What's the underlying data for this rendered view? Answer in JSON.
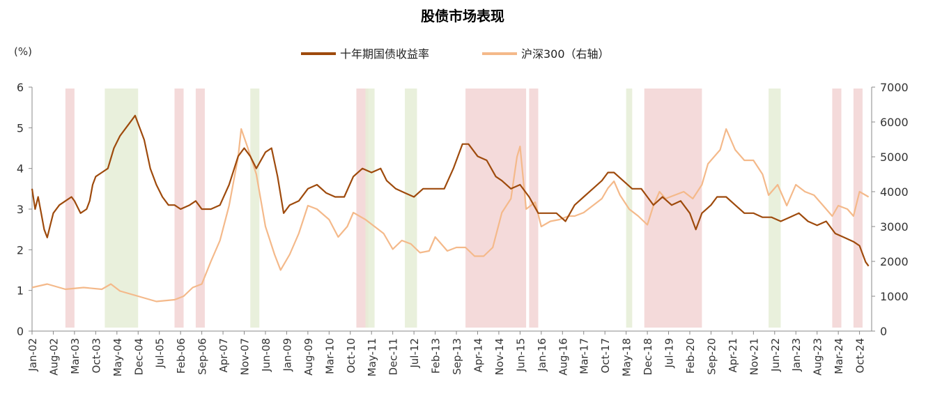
{
  "chart_data": {
    "type": "line",
    "title": "股债市场表现",
    "left_unit": "(%)",
    "y_left": {
      "ticks": [
        0,
        1,
        2,
        3,
        4,
        5,
        6
      ],
      "range": [
        0,
        6
      ]
    },
    "y_right": {
      "ticks": [
        0,
        1000,
        2000,
        3000,
        4000,
        5000,
        6000,
        7000
      ],
      "range": [
        0,
        7000
      ]
    },
    "x_range": [
      "2002-01",
      "2025-02"
    ],
    "x_ticks": [
      {
        "label": "Jan-02",
        "date": "2002-01"
      },
      {
        "label": "Aug-02",
        "date": "2002-08"
      },
      {
        "label": "Mar-03",
        "date": "2003-03"
      },
      {
        "label": "Oct-03",
        "date": "2003-10"
      },
      {
        "label": "May-04",
        "date": "2004-05"
      },
      {
        "label": "Dec-04",
        "date": "2004-12"
      },
      {
        "label": "Jul-05",
        "date": "2005-07"
      },
      {
        "label": "Feb-06",
        "date": "2006-02"
      },
      {
        "label": "Sep-06",
        "date": "2006-09"
      },
      {
        "label": "Apr-07",
        "date": "2007-04"
      },
      {
        "label": "Nov-07",
        "date": "2007-11"
      },
      {
        "label": "Jun-08",
        "date": "2008-06"
      },
      {
        "label": "Jan-09",
        "date": "2009-01"
      },
      {
        "label": "Aug-09",
        "date": "2009-08"
      },
      {
        "label": "Mar-10",
        "date": "2010-03"
      },
      {
        "label": "Oct-10",
        "date": "2010-10"
      },
      {
        "label": "May-11",
        "date": "2011-05"
      },
      {
        "label": "Dec-11",
        "date": "2011-12"
      },
      {
        "label": "Jul-12",
        "date": "2012-07"
      },
      {
        "label": "Feb-13",
        "date": "2013-02"
      },
      {
        "label": "Sep-13",
        "date": "2013-09"
      },
      {
        "label": "Apr-14",
        "date": "2014-04"
      },
      {
        "label": "Nov-14",
        "date": "2014-11"
      },
      {
        "label": "Jun-15",
        "date": "2015-06"
      },
      {
        "label": "Jan-16",
        "date": "2016-01"
      },
      {
        "label": "Aug-16",
        "date": "2016-08"
      },
      {
        "label": "Mar-17",
        "date": "2017-03"
      },
      {
        "label": "Oct-17",
        "date": "2017-10"
      },
      {
        "label": "May-18",
        "date": "2018-05"
      },
      {
        "label": "Dec-18",
        "date": "2018-12"
      },
      {
        "label": "Jul-19",
        "date": "2019-07"
      },
      {
        "label": "Feb-20",
        "date": "2020-02"
      },
      {
        "label": "Sep-20",
        "date": "2020-09"
      },
      {
        "label": "Apr-21",
        "date": "2021-04"
      },
      {
        "label": "Nov-21",
        "date": "2021-11"
      },
      {
        "label": "Jun-22",
        "date": "2022-06"
      },
      {
        "label": "Jan-23",
        "date": "2023-01"
      },
      {
        "label": "Aug-23",
        "date": "2023-08"
      },
      {
        "label": "Mar-24",
        "date": "2024-03"
      },
      {
        "label": "Oct-24",
        "date": "2024-10"
      }
    ],
    "legend_placement": "top-center",
    "grid": false,
    "series": [
      {
        "name": "十年期国债收益率",
        "axis": "left",
        "color": "#9e4a0c",
        "points": [
          [
            "2002-01",
            3.5
          ],
          [
            "2002-02",
            3.0
          ],
          [
            "2002-03",
            3.3
          ],
          [
            "2002-04",
            2.9
          ],
          [
            "2002-05",
            2.5
          ],
          [
            "2002-06",
            2.3
          ],
          [
            "2002-07",
            2.6
          ],
          [
            "2002-08",
            2.9
          ],
          [
            "2002-10",
            3.1
          ],
          [
            "2002-12",
            3.2
          ],
          [
            "2003-02",
            3.3
          ],
          [
            "2003-03",
            3.2
          ],
          [
            "2003-05",
            2.9
          ],
          [
            "2003-07",
            3.0
          ],
          [
            "2003-08",
            3.2
          ],
          [
            "2003-09",
            3.6
          ],
          [
            "2003-10",
            3.8
          ],
          [
            "2003-12",
            3.9
          ],
          [
            "2004-02",
            4.0
          ],
          [
            "2004-04",
            4.5
          ],
          [
            "2004-06",
            4.8
          ],
          [
            "2004-08",
            5.0
          ],
          [
            "2004-10",
            5.2
          ],
          [
            "2004-11",
            5.3
          ],
          [
            "2004-12",
            5.1
          ],
          [
            "2005-02",
            4.7
          ],
          [
            "2005-04",
            4.0
          ],
          [
            "2005-06",
            3.6
          ],
          [
            "2005-08",
            3.3
          ],
          [
            "2005-10",
            3.1
          ],
          [
            "2005-12",
            3.1
          ],
          [
            "2006-02",
            3.0
          ],
          [
            "2006-05",
            3.1
          ],
          [
            "2006-07",
            3.2
          ],
          [
            "2006-09",
            3.0
          ],
          [
            "2006-12",
            3.0
          ],
          [
            "2007-03",
            3.1
          ],
          [
            "2007-06",
            3.6
          ],
          [
            "2007-09",
            4.3
          ],
          [
            "2007-11",
            4.5
          ],
          [
            "2008-01",
            4.3
          ],
          [
            "2008-03",
            4.0
          ],
          [
            "2008-06",
            4.4
          ],
          [
            "2008-08",
            4.5
          ],
          [
            "2008-10",
            3.8
          ],
          [
            "2008-12",
            2.9
          ],
          [
            "2009-02",
            3.1
          ],
          [
            "2009-05",
            3.2
          ],
          [
            "2009-08",
            3.5
          ],
          [
            "2009-11",
            3.6
          ],
          [
            "2010-02",
            3.4
          ],
          [
            "2010-05",
            3.3
          ],
          [
            "2010-08",
            3.3
          ],
          [
            "2010-11",
            3.8
          ],
          [
            "2011-02",
            4.0
          ],
          [
            "2011-05",
            3.9
          ],
          [
            "2011-08",
            4.0
          ],
          [
            "2011-10",
            3.7
          ],
          [
            "2012-01",
            3.5
          ],
          [
            "2012-04",
            3.4
          ],
          [
            "2012-07",
            3.3
          ],
          [
            "2012-10",
            3.5
          ],
          [
            "2013-02",
            3.5
          ],
          [
            "2013-05",
            3.5
          ],
          [
            "2013-08",
            4.0
          ],
          [
            "2013-11",
            4.6
          ],
          [
            "2014-01",
            4.6
          ],
          [
            "2014-04",
            4.3
          ],
          [
            "2014-07",
            4.2
          ],
          [
            "2014-10",
            3.8
          ],
          [
            "2014-12",
            3.7
          ],
          [
            "2015-03",
            3.5
          ],
          [
            "2015-06",
            3.6
          ],
          [
            "2015-09",
            3.3
          ],
          [
            "2015-12",
            2.9
          ],
          [
            "2016-03",
            2.9
          ],
          [
            "2016-06",
            2.9
          ],
          [
            "2016-09",
            2.7
          ],
          [
            "2016-12",
            3.1
          ],
          [
            "2017-03",
            3.3
          ],
          [
            "2017-06",
            3.5
          ],
          [
            "2017-09",
            3.7
          ],
          [
            "2017-11",
            3.9
          ],
          [
            "2018-01",
            3.9
          ],
          [
            "2018-04",
            3.7
          ],
          [
            "2018-07",
            3.5
          ],
          [
            "2018-10",
            3.5
          ],
          [
            "2018-12",
            3.3
          ],
          [
            "2019-02",
            3.1
          ],
          [
            "2019-05",
            3.3
          ],
          [
            "2019-08",
            3.1
          ],
          [
            "2019-11",
            3.2
          ],
          [
            "2020-02",
            2.9
          ],
          [
            "2020-04",
            2.5
          ],
          [
            "2020-06",
            2.9
          ],
          [
            "2020-09",
            3.1
          ],
          [
            "2020-11",
            3.3
          ],
          [
            "2021-02",
            3.3
          ],
          [
            "2021-05",
            3.1
          ],
          [
            "2021-08",
            2.9
          ],
          [
            "2021-11",
            2.9
          ],
          [
            "2022-02",
            2.8
          ],
          [
            "2022-05",
            2.8
          ],
          [
            "2022-08",
            2.7
          ],
          [
            "2022-11",
            2.8
          ],
          [
            "2023-02",
            2.9
          ],
          [
            "2023-05",
            2.7
          ],
          [
            "2023-08",
            2.6
          ],
          [
            "2023-11",
            2.7
          ],
          [
            "2024-02",
            2.4
          ],
          [
            "2024-05",
            2.3
          ],
          [
            "2024-08",
            2.2
          ],
          [
            "2024-10",
            2.1
          ],
          [
            "2024-12",
            1.7
          ],
          [
            "2025-01",
            1.6
          ]
        ]
      },
      {
        "name": "沪深300（右轴）",
        "axis": "right",
        "color": "#f4b98a",
        "points": [
          [
            "2002-01",
            1250
          ],
          [
            "2002-06",
            1350
          ],
          [
            "2002-12",
            1200
          ],
          [
            "2003-06",
            1250
          ],
          [
            "2003-12",
            1200
          ],
          [
            "2004-03",
            1350
          ],
          [
            "2004-06",
            1150
          ],
          [
            "2004-12",
            1000
          ],
          [
            "2005-06",
            850
          ],
          [
            "2005-12",
            900
          ],
          [
            "2006-03",
            1000
          ],
          [
            "2006-06",
            1250
          ],
          [
            "2006-09",
            1350
          ],
          [
            "2006-12",
            2000
          ],
          [
            "2007-03",
            2600
          ],
          [
            "2007-06",
            3600
          ],
          [
            "2007-09",
            5000
          ],
          [
            "2007-10",
            5800
          ],
          [
            "2007-12",
            5300
          ],
          [
            "2008-03",
            4500
          ],
          [
            "2008-06",
            3000
          ],
          [
            "2008-09",
            2200
          ],
          [
            "2008-11",
            1750
          ],
          [
            "2009-02",
            2200
          ],
          [
            "2009-05",
            2800
          ],
          [
            "2009-08",
            3600
          ],
          [
            "2009-11",
            3500
          ],
          [
            "2010-03",
            3200
          ],
          [
            "2010-06",
            2700
          ],
          [
            "2010-09",
            3000
          ],
          [
            "2010-11",
            3400
          ],
          [
            "2011-03",
            3200
          ],
          [
            "2011-06",
            3000
          ],
          [
            "2011-09",
            2800
          ],
          [
            "2011-12",
            2350
          ],
          [
            "2012-03",
            2600
          ],
          [
            "2012-06",
            2500
          ],
          [
            "2012-09",
            2250
          ],
          [
            "2012-12",
            2300
          ],
          [
            "2013-02",
            2700
          ],
          [
            "2013-06",
            2300
          ],
          [
            "2013-09",
            2400
          ],
          [
            "2013-12",
            2400
          ],
          [
            "2014-03",
            2150
          ],
          [
            "2014-06",
            2150
          ],
          [
            "2014-09",
            2400
          ],
          [
            "2014-12",
            3400
          ],
          [
            "2015-03",
            3800
          ],
          [
            "2015-05",
            5000
          ],
          [
            "2015-06",
            5300
          ],
          [
            "2015-08",
            3500
          ],
          [
            "2015-11",
            3700
          ],
          [
            "2016-01",
            3000
          ],
          [
            "2016-04",
            3150
          ],
          [
            "2016-07",
            3200
          ],
          [
            "2016-10",
            3300
          ],
          [
            "2016-12",
            3300
          ],
          [
            "2017-03",
            3400
          ],
          [
            "2017-06",
            3600
          ],
          [
            "2017-09",
            3800
          ],
          [
            "2017-11",
            4100
          ],
          [
            "2018-01",
            4300
          ],
          [
            "2018-03",
            3900
          ],
          [
            "2018-06",
            3500
          ],
          [
            "2018-09",
            3300
          ],
          [
            "2018-12",
            3050
          ],
          [
            "2019-02",
            3600
          ],
          [
            "2019-04",
            4000
          ],
          [
            "2019-06",
            3800
          ],
          [
            "2019-09",
            3900
          ],
          [
            "2019-12",
            4000
          ],
          [
            "2020-03",
            3800
          ],
          [
            "2020-06",
            4200
          ],
          [
            "2020-08",
            4800
          ],
          [
            "2020-12",
            5200
          ],
          [
            "2021-02",
            5800
          ],
          [
            "2021-05",
            5200
          ],
          [
            "2021-08",
            4900
          ],
          [
            "2021-11",
            4900
          ],
          [
            "2022-02",
            4500
          ],
          [
            "2022-04",
            3900
          ],
          [
            "2022-07",
            4200
          ],
          [
            "2022-10",
            3600
          ],
          [
            "2023-01",
            4200
          ],
          [
            "2023-04",
            4000
          ],
          [
            "2023-07",
            3900
          ],
          [
            "2023-10",
            3600
          ],
          [
            "2024-01",
            3300
          ],
          [
            "2024-03",
            3600
          ],
          [
            "2024-06",
            3500
          ],
          [
            "2024-08",
            3300
          ],
          [
            "2024-10",
            4000
          ],
          [
            "2024-12",
            3900
          ],
          [
            "2025-01",
            3850
          ]
        ]
      }
    ],
    "shaded_bands": [
      {
        "start": "2002-12",
        "end": "2003-03",
        "color": "#f2d4d4"
      },
      {
        "start": "2004-01",
        "end": "2004-12",
        "color": "#e5edd6"
      },
      {
        "start": "2005-12",
        "end": "2006-03",
        "color": "#f2d4d4"
      },
      {
        "start": "2006-07",
        "end": "2006-10",
        "color": "#f2d4d4"
      },
      {
        "start": "2008-01",
        "end": "2008-04",
        "color": "#e5edd6"
      },
      {
        "start": "2010-12",
        "end": "2011-04",
        "color": "#f2d4d4"
      },
      {
        "start": "2011-03",
        "end": "2011-06",
        "color": "#e5edd6"
      },
      {
        "start": "2012-04",
        "end": "2012-08",
        "color": "#e5edd6"
      },
      {
        "start": "2013-12",
        "end": "2015-08",
        "color": "#f2d4d4"
      },
      {
        "start": "2015-09",
        "end": "2015-12",
        "color": "#f2d4d4"
      },
      {
        "start": "2018-05",
        "end": "2018-07",
        "color": "#e5edd6"
      },
      {
        "start": "2018-11",
        "end": "2020-06",
        "color": "#f2d4d4"
      },
      {
        "start": "2022-04",
        "end": "2022-08",
        "color": "#e5edd6"
      },
      {
        "start": "2024-01",
        "end": "2024-04",
        "color": "#f2d4d4"
      },
      {
        "start": "2024-08",
        "end": "2024-11",
        "color": "#f2d4d4"
      }
    ]
  }
}
